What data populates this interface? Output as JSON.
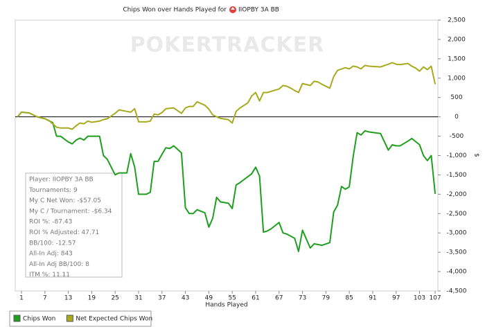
{
  "chart_data": {
    "type": "line",
    "title": "Chips Won over Hands Played for",
    "title_player": "IIOPBY 3A BB",
    "watermark": "POKERTRACKER",
    "x_label": "Hands Played",
    "y_label": "$",
    "xlim": [
      -0.6,
      107.7
    ],
    "xticks": [
      1,
      7,
      13,
      19,
      25,
      31,
      37,
      43,
      49,
      55,
      61,
      67,
      73,
      79,
      85,
      91,
      97,
      103,
      107
    ],
    "ylim": [
      -4500,
      2500
    ],
    "yticks": [
      {
        "value": -4500,
        "label": "-4,500"
      },
      {
        "value": -4000,
        "label": "-4,000"
      },
      {
        "value": -3500,
        "label": "-3,500"
      },
      {
        "value": -3000,
        "label": "-3,000"
      },
      {
        "value": -2500,
        "label": "-2,500"
      },
      {
        "value": -2000,
        "label": "-2,000"
      },
      {
        "value": -1500,
        "label": "-1,500"
      },
      {
        "value": -1000,
        "label": "-1,000"
      },
      -500,
      0,
      500,
      {
        "value": 1000,
        "label": "1,000"
      },
      {
        "value": 1500,
        "label": "1,500"
      },
      {
        "value": 2000,
        "label": "2,000"
      },
      {
        "value": 2500,
        "label": "2,500"
      }
    ],
    "stats": [
      "Player: IIOPBY 3A BB",
      "Tournaments: 9",
      "My C Net Won: -$57.05",
      "My C / Tournament: -$6.34",
      "ROI %: -87.43",
      "ROI % Adjusted: 47.71",
      "BB/100: -12.57",
      "All-In Adj: 843",
      "All-In Adj BB/100: 8",
      "ITM %: 11.11"
    ],
    "series": [
      {
        "name": "Chips Won",
        "color": "#1e9e1e",
        "x": [
          0,
          1,
          3,
          5,
          7,
          9,
          10,
          11,
          13,
          14,
          15,
          16,
          17,
          18,
          19,
          21,
          22,
          23,
          25,
          26,
          28,
          29,
          30,
          31,
          33,
          34,
          35,
          36,
          37,
          38,
          39,
          40,
          42,
          43,
          44,
          45,
          46,
          48,
          49,
          50,
          51,
          52,
          54,
          55,
          56,
          57,
          60,
          61,
          62,
          63,
          64,
          65,
          67,
          68,
          69,
          71,
          72,
          73,
          75,
          76,
          77,
          78,
          80,
          81,
          82,
          83,
          84,
          85,
          86,
          87,
          88,
          89,
          90,
          93,
          95,
          96,
          97,
          98,
          100,
          101,
          103,
          104,
          105,
          106,
          107
        ],
        "values": [
          0,
          120,
          100,
          0,
          -50,
          -150,
          -500,
          -500,
          -650,
          -700,
          -600,
          -550,
          -600,
          -500,
          -500,
          -500,
          -1000,
          -1100,
          -1500,
          -1450,
          -1450,
          -950,
          -1300,
          -2000,
          -2000,
          -1950,
          -1150,
          -1150,
          -970,
          -800,
          -820,
          -750,
          -930,
          -2350,
          -2500,
          -2500,
          -2400,
          -2480,
          -2850,
          -2620,
          -2080,
          -2200,
          -2230,
          -2370,
          -1760,
          -1700,
          -1470,
          -1300,
          -1530,
          -2980,
          -2950,
          -2890,
          -2730,
          -3000,
          -3030,
          -3140,
          -3480,
          -2930,
          -3390,
          -3280,
          -3300,
          -3320,
          -3250,
          -2460,
          -2280,
          -1800,
          -1870,
          -1810,
          -1020,
          -410,
          -470,
          -360,
          -390,
          -430,
          -860,
          -720,
          -750,
          -750,
          -630,
          -560,
          -720,
          -1000,
          -1130,
          -1000,
          -1990
        ]
      },
      {
        "name": "Net Expected Chips Won",
        "color": "#a9a91e",
        "x": [
          0,
          1,
          3,
          5,
          7,
          8,
          10,
          11,
          13,
          14,
          15,
          16,
          17,
          18,
          19,
          21,
          22,
          23,
          25,
          26,
          28,
          29,
          30,
          31,
          33,
          34,
          35,
          36,
          37,
          38,
          40,
          42,
          43,
          44,
          45,
          46,
          48,
          49,
          50,
          51,
          52,
          54,
          55,
          56,
          57,
          59,
          60,
          61,
          62,
          63,
          64,
          65,
          67,
          68,
          69,
          70,
          71,
          72,
          73,
          75,
          76,
          77,
          78,
          80,
          81,
          82,
          84,
          85,
          86,
          87,
          88,
          89,
          90,
          93,
          95,
          96,
          97,
          98,
          100,
          101,
          102,
          103,
          104,
          105,
          106,
          107
        ],
        "values": [
          0,
          120,
          100,
          0,
          -50,
          -90,
          -270,
          -290,
          -290,
          -320,
          -230,
          -160,
          -180,
          -110,
          -140,
          -110,
          -70,
          -50,
          90,
          180,
          140,
          120,
          210,
          -130,
          -130,
          -110,
          70,
          50,
          110,
          210,
          230,
          90,
          230,
          270,
          270,
          390,
          300,
          200,
          50,
          0,
          -40,
          -70,
          -160,
          140,
          230,
          360,
          540,
          630,
          410,
          630,
          630,
          660,
          720,
          810,
          790,
          740,
          680,
          630,
          860,
          810,
          920,
          900,
          840,
          740,
          1040,
          1200,
          1270,
          1240,
          1310,
          1290,
          1240,
          1330,
          1310,
          1290,
          1360,
          1400,
          1360,
          1350,
          1380,
          1310,
          1260,
          1180,
          1290,
          1220,
          1310,
          840
        ]
      }
    ]
  }
}
